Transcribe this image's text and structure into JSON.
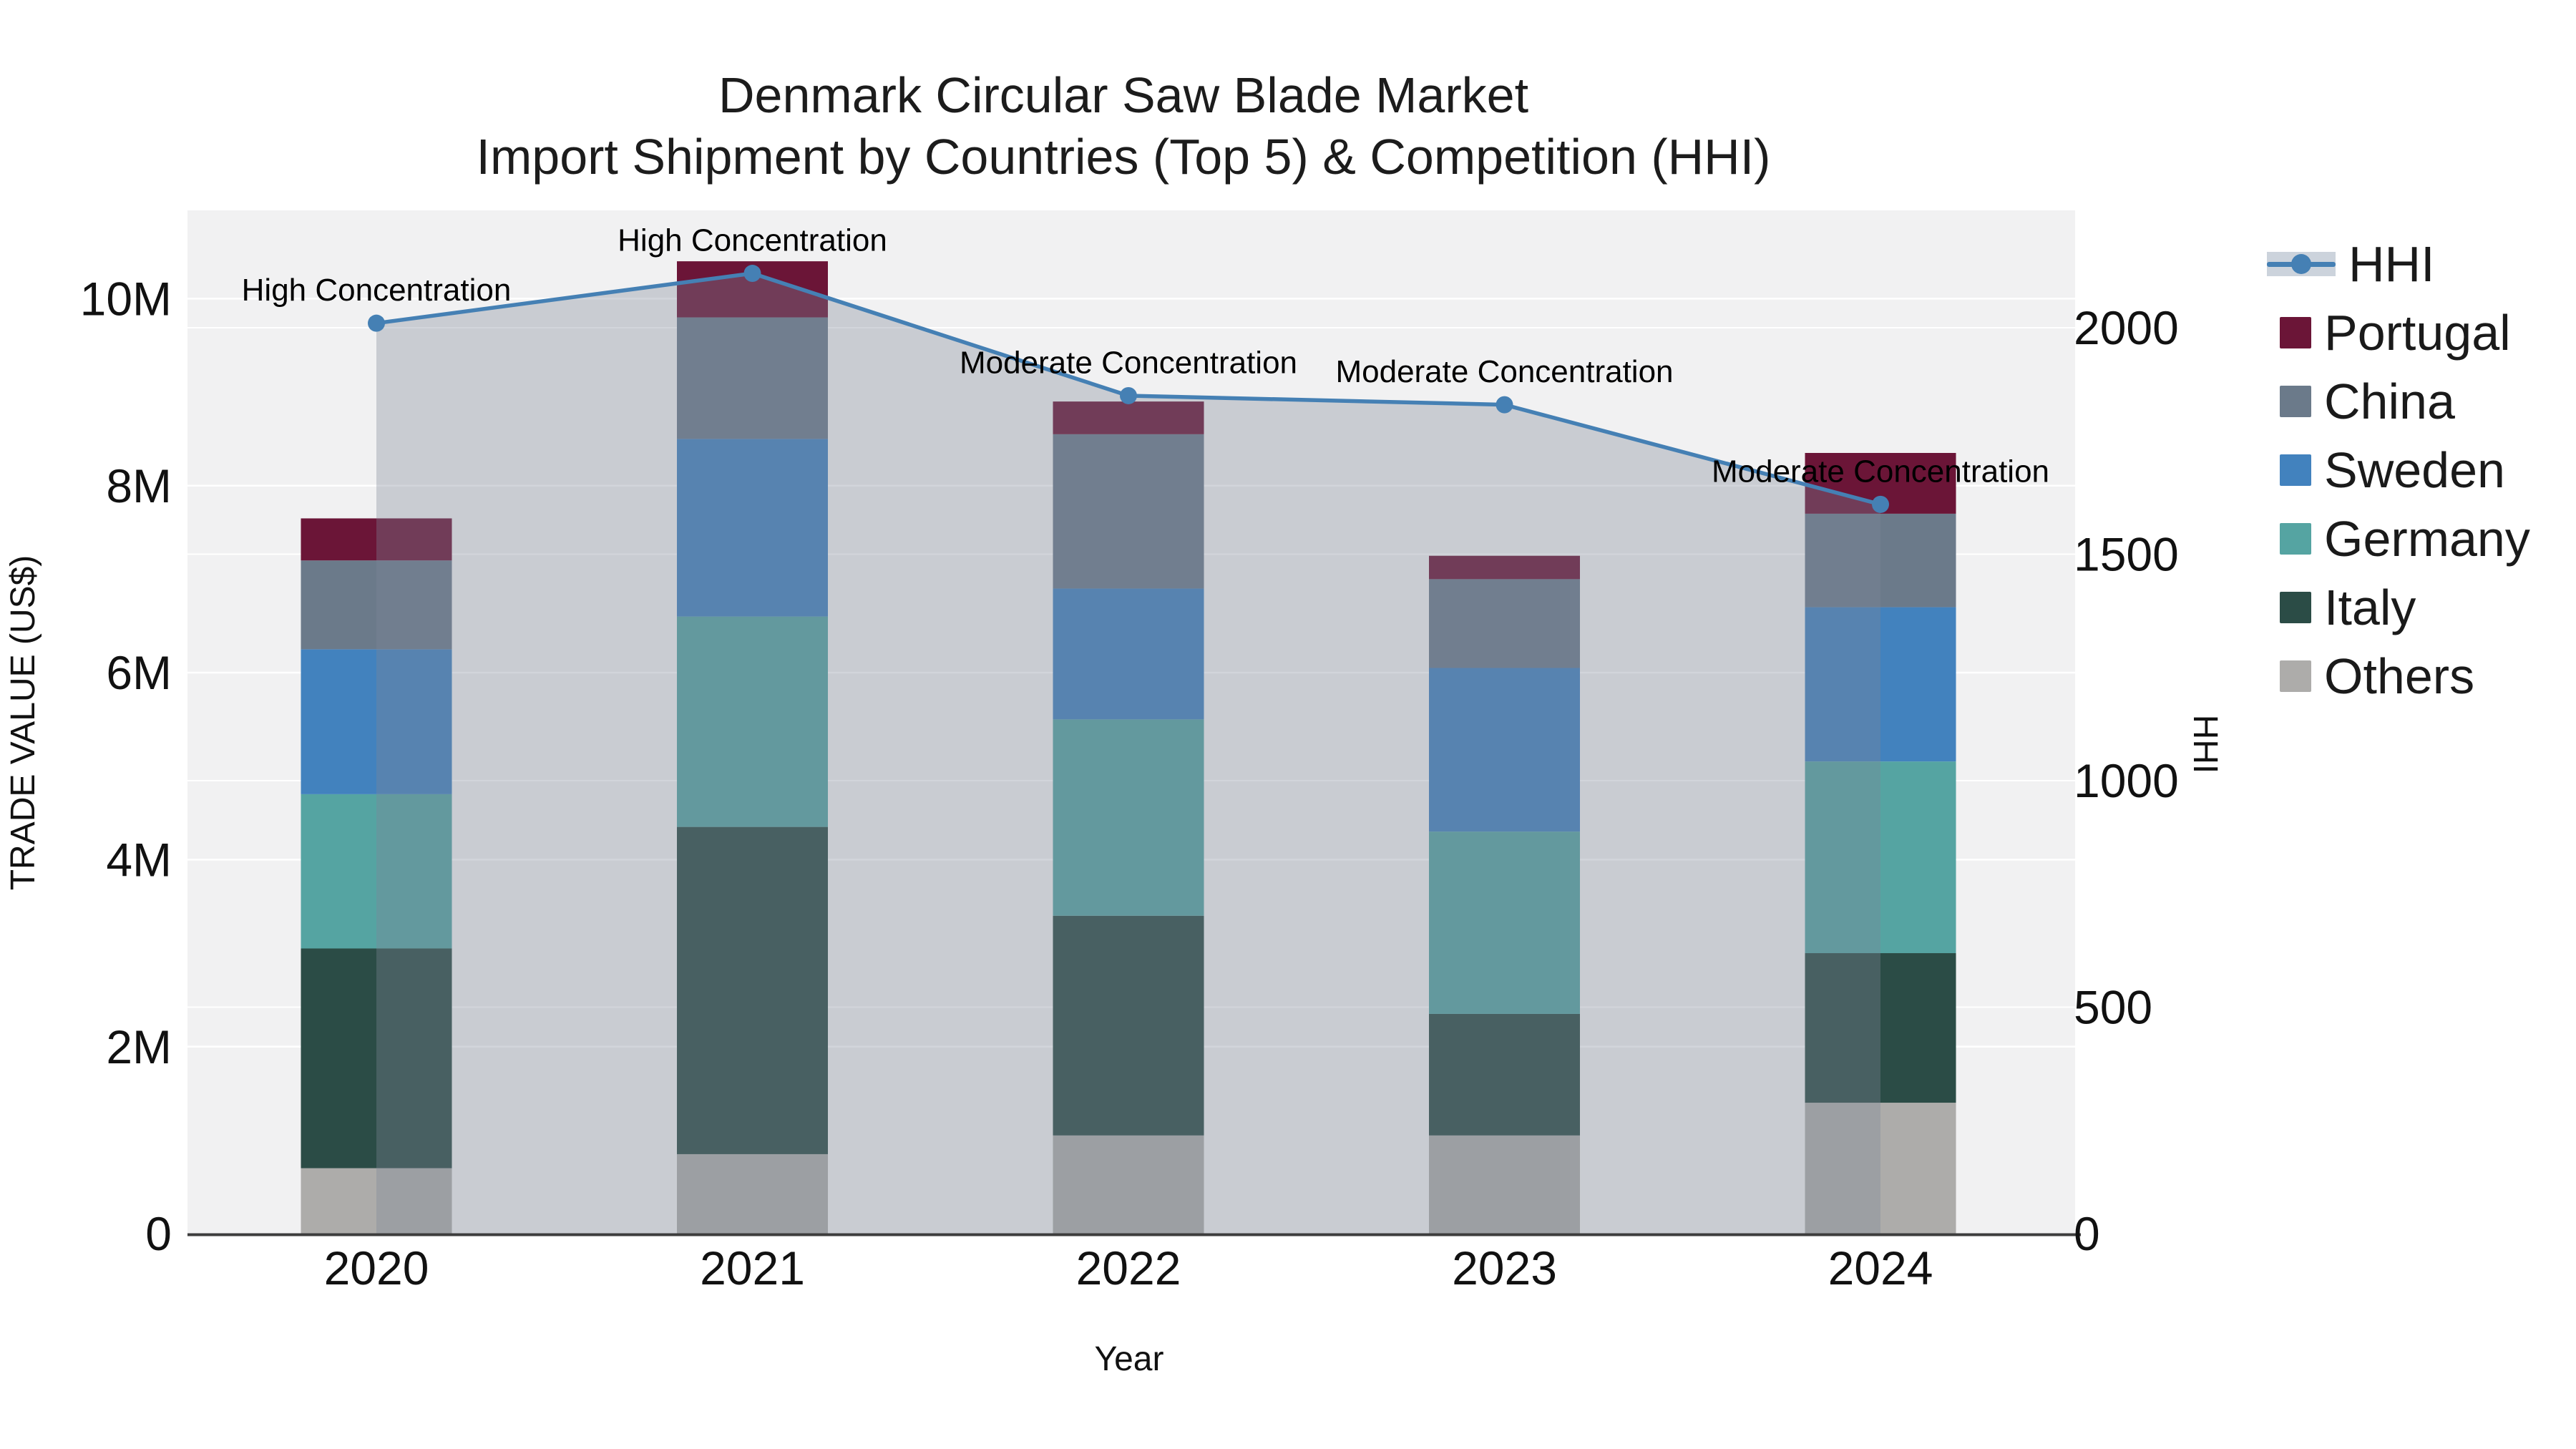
{
  "header": {
    "title_line1": "Denmark Circular Saw Blade Market",
    "title_line2": "Import Shipment by Countries (Top 5) & Competition (HHI)"
  },
  "chart_data": {
    "type": "bar",
    "stacked": true,
    "title": "Denmark Circular Saw Blade Market — Import Shipment by Countries (Top 5) & Competition (HHI)",
    "categories": [
      "2020",
      "2021",
      "2022",
      "2023",
      "2024"
    ],
    "values_unit": "M US$",
    "series": [
      {
        "name": "Others",
        "color": "#adacaa",
        "values": [
          0.7,
          0.85,
          1.05,
          1.05,
          1.4
        ]
      },
      {
        "name": "Italy",
        "color": "#2b4c46",
        "values": [
          2.35,
          3.5,
          2.35,
          1.3,
          1.6
        ]
      },
      {
        "name": "Germany",
        "color": "#55a4a2",
        "values": [
          1.65,
          2.25,
          2.1,
          1.95,
          2.05
        ]
      },
      {
        "name": "Sweden",
        "color": "#4282be",
        "values": [
          1.55,
          1.9,
          1.4,
          1.75,
          1.65
        ]
      },
      {
        "name": "China",
        "color": "#6b7a8a",
        "values": [
          0.95,
          1.3,
          1.65,
          0.95,
          1.0
        ]
      },
      {
        "name": "Portugal",
        "color": "#6b1537",
        "values": [
          0.45,
          0.6,
          0.35,
          0.25,
          0.65
        ]
      }
    ],
    "hhi_series": {
      "name": "HHI",
      "color": "#4580b4",
      "area_color": "rgba(125,134,152,0.35)",
      "values": [
        2010,
        2120,
        1850,
        1830,
        1610
      ]
    },
    "annotations": [
      "High Concentration",
      "High Concentration",
      "Moderate Concentration",
      "Moderate Concentration",
      "Moderate Concentration"
    ],
    "y_left": {
      "label": "TRADE VALUE (US$)",
      "ticks": [
        "0",
        "2M",
        "4M",
        "6M",
        "8M",
        "10M"
      ],
      "tick_values": [
        0,
        2,
        4,
        6,
        8,
        10
      ],
      "range": [
        0,
        11.0
      ]
    },
    "y_right": {
      "label": "HHI",
      "ticks": [
        "0",
        "500",
        "1000",
        "1500",
        "2000"
      ],
      "tick_values": [
        0,
        500,
        1000,
        1500,
        2000
      ],
      "range": [
        0,
        2264
      ]
    },
    "xlabel": "Year",
    "legend_position": "right",
    "legend_order": [
      "HHI",
      "Portugal",
      "China",
      "Sweden",
      "Germany",
      "Italy",
      "Others"
    ],
    "plot_background": "#f1f1f2",
    "gridline_color": "#ffffff"
  }
}
